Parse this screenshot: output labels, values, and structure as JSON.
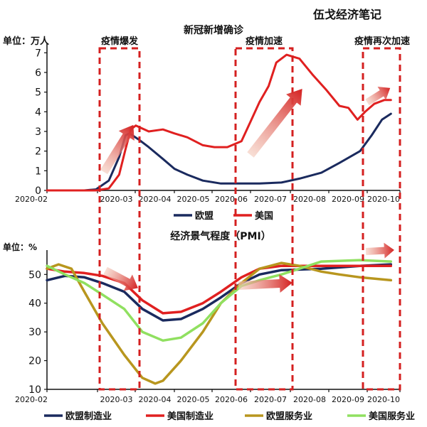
{
  "watermark": "伍戈经济笔记",
  "colors": {
    "eu": "#1a2a5e",
    "us": "#e02020",
    "eu_services": "#b8961e",
    "us_services": "#90e060",
    "box": "#d42020"
  },
  "annotations": [
    "疫情爆发",
    "疫情加速",
    "疫情再次加速"
  ],
  "chart_data": [
    {
      "type": "line",
      "title": "新冠新增确诊",
      "unit_label": "单位：万人",
      "x_tick_labels": [
        "2020-02",
        "2020-03",
        "2020-04",
        "2020-05",
        "2020-06",
        "2020-07",
        "2020-08",
        "2020-09",
        "2020-10"
      ],
      "y_tick_labels": [
        "0",
        "1",
        "2",
        "3",
        "4",
        "5",
        "6",
        "7"
      ],
      "ylim": [
        0,
        7.3
      ],
      "legend_position": "bottom",
      "series": [
        {
          "name": "欧盟",
          "color": "#1a2a5e",
          "x": [
            "2020-02-01",
            "2020-03-01",
            "2020-03-10",
            "2020-03-20",
            "2020-03-28",
            "2020-04-02",
            "2020-04-05",
            "2020-04-12",
            "2020-04-20",
            "2020-05-01",
            "2020-05-10",
            "2020-05-20",
            "2020-06-01",
            "2020-06-15",
            "2020-07-01",
            "2020-07-15",
            "2020-08-01",
            "2020-08-15",
            "2020-09-01",
            "2020-09-15",
            "2020-10-01",
            "2020-10-10",
            "2020-10-18",
            "2020-10-25"
          ],
          "values": [
            0,
            0,
            0.05,
            0.5,
            1.7,
            2.8,
            2.9,
            2.6,
            2.2,
            1.6,
            1.1,
            0.8,
            0.5,
            0.35,
            0.35,
            0.35,
            0.4,
            0.6,
            0.9,
            1.4,
            2.0,
            2.8,
            3.6,
            3.9
          ]
        },
        {
          "name": "美国",
          "color": "#e02020",
          "x": [
            "2020-02-01",
            "2020-03-01",
            "2020-03-10",
            "2020-03-20",
            "2020-03-28",
            "2020-04-02",
            "2020-04-06",
            "2020-04-10",
            "2020-04-20",
            "2020-05-01",
            "2020-05-10",
            "2020-05-20",
            "2020-06-01",
            "2020-06-10",
            "2020-06-20",
            "2020-07-01",
            "2020-07-08",
            "2020-07-15",
            "2020-07-22",
            "2020-07-28",
            "2020-08-05",
            "2020-08-15",
            "2020-08-25",
            "2020-09-05",
            "2020-09-15",
            "2020-09-22",
            "2020-09-29",
            "2020-10-05",
            "2020-10-12",
            "2020-10-20",
            "2020-10-25"
          ],
          "values": [
            0,
            0,
            0,
            0.1,
            0.8,
            2.1,
            3.1,
            3.3,
            3.0,
            3.1,
            2.9,
            2.7,
            2.3,
            2.2,
            2.2,
            2.5,
            3.5,
            4.5,
            5.3,
            6.5,
            6.9,
            6.7,
            5.9,
            5.1,
            4.3,
            4.2,
            3.6,
            4.0,
            4.4,
            4.6,
            4.6
          ]
        }
      ]
    },
    {
      "type": "line",
      "title": "经济景气程度（PMI）",
      "unit_label": "单位：%",
      "x_tick_labels": [
        "2020-02",
        "2020-03",
        "2020-04",
        "2020-05",
        "2020-06",
        "2020-07",
        "2020-08",
        "2020-09",
        "2020-10"
      ],
      "y_tick_labels": [
        "10",
        "20",
        "30",
        "40",
        "50"
      ],
      "ylim": [
        10,
        57
      ],
      "legend_position": "bottom",
      "series": [
        {
          "name": "欧盟制造业",
          "color": "#1a2a5e",
          "x": [
            "2020-02-01",
            "2020-02-15",
            "2020-03-01",
            "2020-03-15",
            "2020-04-01",
            "2020-04-15",
            "2020-05-01",
            "2020-05-15",
            "2020-06-01",
            "2020-06-15",
            "2020-07-01",
            "2020-07-15",
            "2020-08-01",
            "2020-09-01",
            "2020-10-01",
            "2020-10-25"
          ],
          "values": [
            48,
            49.5,
            49,
            47,
            44,
            38,
            34,
            34.5,
            38,
            42,
            47,
            50,
            51.5,
            52,
            53,
            53.5
          ]
        },
        {
          "name": "美国制造业",
          "color": "#e02020",
          "x": [
            "2020-02-01",
            "2020-02-15",
            "2020-03-01",
            "2020-03-15",
            "2020-04-01",
            "2020-04-15",
            "2020-05-01",
            "2020-05-15",
            "2020-06-01",
            "2020-06-15",
            "2020-07-01",
            "2020-07-15",
            "2020-08-01",
            "2020-09-01",
            "2020-10-01",
            "2020-10-25"
          ],
          "values": [
            52,
            51,
            50.5,
            49.5,
            47,
            41,
            36.5,
            37,
            40,
            44,
            49,
            52,
            53,
            53,
            53,
            53
          ]
        },
        {
          "name": "欧盟服务业",
          "color": "#b8961e",
          "x": [
            "2020-02-01",
            "2020-02-10",
            "2020-02-20",
            "2020-03-01",
            "2020-03-15",
            "2020-04-01",
            "2020-04-15",
            "2020-04-25",
            "2020-05-01",
            "2020-05-15",
            "2020-06-01",
            "2020-06-15",
            "2020-07-01",
            "2020-07-15",
            "2020-08-01",
            "2020-08-15",
            "2020-09-01",
            "2020-09-15",
            "2020-10-01",
            "2020-10-25"
          ],
          "values": [
            52,
            53.5,
            52,
            44,
            33,
            22,
            14,
            12,
            13,
            20,
            30,
            40,
            47,
            52,
            54,
            53,
            51,
            50,
            49,
            48
          ]
        },
        {
          "name": "美国服务业",
          "color": "#90e060",
          "x": [
            "2020-02-01",
            "2020-02-15",
            "2020-03-01",
            "2020-03-15",
            "2020-04-01",
            "2020-04-15",
            "2020-05-01",
            "2020-05-15",
            "2020-06-01",
            "2020-06-15",
            "2020-07-01",
            "2020-07-15",
            "2020-08-01",
            "2020-08-15",
            "2020-09-01",
            "2020-10-01",
            "2020-10-25"
          ],
          "values": [
            53,
            50,
            47,
            43,
            38,
            30,
            27,
            28,
            33,
            40,
            46,
            48,
            50,
            52,
            54.5,
            55,
            54.5
          ]
        }
      ]
    }
  ]
}
